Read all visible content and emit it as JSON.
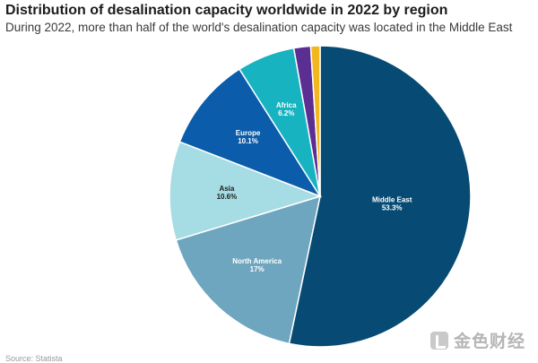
{
  "header": {
    "title": "Distribution of desalination capacity worldwide in 2022 by region",
    "subtitle": "During 2022, more than half of the world's desalination capacity was located in the Middle East"
  },
  "footer": {
    "source": "Source: Statista",
    "watermark": "金色财经"
  },
  "chart_data": {
    "type": "pie",
    "title": "Distribution of desalination capacity worldwide in 2022 by region",
    "subtitle": "During 2022, more than half of the world's desalination capacity was located in the Middle East",
    "start": "12 o'clock, clockwise",
    "slices": [
      {
        "name": "Middle East",
        "value": 53.3,
        "label": "53.3%",
        "color": "#074b74",
        "text_color": "#ffffff"
      },
      {
        "name": "North America",
        "value": 17,
        "label": "17%",
        "color": "#6fa6bf",
        "text_color": "#ffffff"
      },
      {
        "name": "Asia",
        "value": 10.6,
        "label": "10.6%",
        "color": "#a6dce4",
        "text_color": "#1c1c1c"
      },
      {
        "name": "Europe",
        "value": 10.1,
        "label": "10.1%",
        "color": "#0b5cab",
        "text_color": "#ffffff"
      },
      {
        "name": "Africa",
        "value": 6.2,
        "label": "6.2%",
        "color": "#17b3c1",
        "text_color": "#ffffff"
      },
      {
        "name": "",
        "value": 1.8,
        "label": "",
        "color": "#5b2e91",
        "text_color": "#ffffff"
      },
      {
        "name": "",
        "value": 1.0,
        "label": "",
        "color": "#f2b61f",
        "text_color": "#1c1c1c"
      }
    ]
  }
}
